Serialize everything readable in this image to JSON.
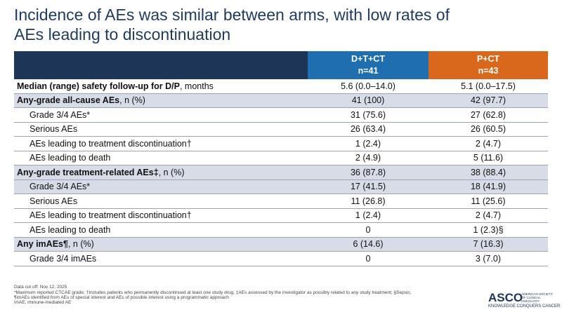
{
  "header": {
    "title_lines": [
      "Incidence of AEs was similar between arms, with low rates of",
      "AEs leading to discontinuation"
    ]
  },
  "table": {
    "columns": [
      {
        "name": "D+T+CT",
        "n": "n=41"
      },
      {
        "name": "P+CT",
        "n": "n=43"
      }
    ],
    "rows": [
      {
        "label": "Median (range) safety follow-up for D/P",
        "suffix": ", months",
        "bold": true,
        "indent": false,
        "shaded": false,
        "cells": [
          "5.6 (0.0–14.0)",
          "5.1 (0.0–17.5)"
        ]
      },
      {
        "label": "Any-grade all-cause AEs",
        "suffix": ", n (%)",
        "bold": true,
        "indent": false,
        "shaded": true,
        "cells": [
          "41 (100)",
          "42 (97.7)"
        ]
      },
      {
        "label": "Grade 3/4 AEs*",
        "bold": false,
        "indent": true,
        "shaded": false,
        "cells": [
          "31 (75.6)",
          "27 (62.8)"
        ]
      },
      {
        "label": "Serious AEs",
        "bold": false,
        "indent": true,
        "shaded": false,
        "cells": [
          "26 (63.4)",
          "26 (60.5)"
        ]
      },
      {
        "label": "AEs leading to treatment discontinuation†",
        "bold": false,
        "indent": true,
        "shaded": false,
        "cells": [
          "1 (2.4)",
          "2 (4.7)"
        ]
      },
      {
        "label": "AEs leading to death",
        "bold": false,
        "indent": true,
        "shaded": false,
        "cells": [
          "2 (4.9)",
          "5 (11.6)"
        ]
      },
      {
        "label": "Any-grade treatment-related AEs‡",
        "suffix": ", n (%)",
        "bold": true,
        "indent": false,
        "shaded": true,
        "cells": [
          "36 (87.8)",
          "38 (88.4)"
        ]
      },
      {
        "label": "Grade 3/4 AEs*",
        "bold": false,
        "indent": true,
        "shaded": true,
        "cells": [
          "17 (41.5)",
          "18 (41.9)"
        ]
      },
      {
        "label": "Serious AEs",
        "bold": false,
        "indent": true,
        "shaded": false,
        "cells": [
          "11 (26.8)",
          "11 (25.6)"
        ]
      },
      {
        "label": "AEs leading to treatment discontinuation†",
        "bold": false,
        "indent": true,
        "shaded": false,
        "cells": [
          "1 (2.4)",
          "2 (4.7)"
        ]
      },
      {
        "label": "AEs leading to death",
        "bold": false,
        "indent": true,
        "shaded": false,
        "cells": [
          "0",
          "1 (2.3)§"
        ]
      },
      {
        "label": "Any imAEs¶",
        "suffix": ", n (%)",
        "bold": true,
        "indent": false,
        "shaded": true,
        "cells": [
          "6 (14.6)",
          "7 (16.3)"
        ]
      },
      {
        "label": "Grade 3/4 imAEs",
        "bold": false,
        "indent": true,
        "shaded": false,
        "cells": [
          "0",
          "3 (7.0)"
        ]
      }
    ]
  },
  "footnotes": [
    "Data cut off: Nov 12, 2025",
    "*Maximum reported CTCAE grade; †Includes patients who permanently discontinued at least one study drug; ‡AEs assessed by the investigator as possibly related to any study treatment; §Sepsis;",
    "¶imAEs identified from AEs of special interest and AEs of possible interest using a programmatic approach",
    "imAE, immune-mediated AE"
  ],
  "logo": {
    "name": "ASCO",
    "org": "AMERICAN SOCIETY OF CLINICAL ONCOLOGY",
    "tagline": "KNOWLEDGE CONQUERS CANCER"
  }
}
